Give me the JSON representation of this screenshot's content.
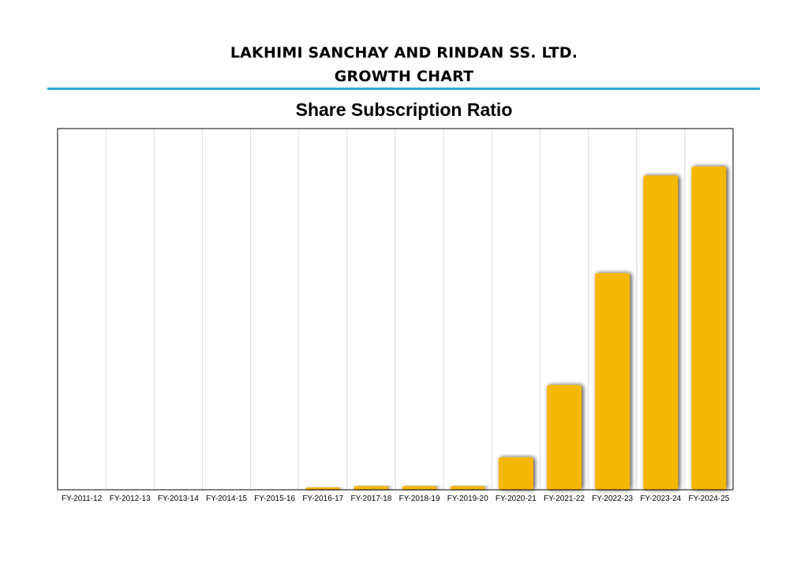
{
  "header": {
    "company": "LAKHIMI SANCHAY AND RINDAN SS. LTD.",
    "subtitle": "GROWTH CHART"
  },
  "colors": {
    "bar": "#F5B700",
    "divider": "#2AA8D6",
    "gridline": "#D9D9D9",
    "frame": "#000000"
  },
  "chart_data": {
    "type": "bar",
    "title": "Share Subscription Ratio",
    "xlabel": "",
    "ylabel": "",
    "categories": [
      "FY-2011-12",
      "FY-2012-13",
      "FY-2013-14",
      "FY-2014-15",
      "FY-2015-16",
      "FY-2016-17",
      "FY-2017-18",
      "FY-2018-19",
      "FY-2019-20",
      "FY-2020-21",
      "FY-2021-22",
      "FY-2022-23",
      "FY-2023-24",
      "FY-2024-25"
    ],
    "values": [
      0,
      0,
      0,
      0,
      0,
      0.5,
      1,
      1,
      1,
      9,
      29,
      60,
      87,
      89.5
    ],
    "ylim": [
      0,
      100
    ],
    "y_axis_visible": false,
    "grid": "vertical",
    "legend": "none"
  }
}
